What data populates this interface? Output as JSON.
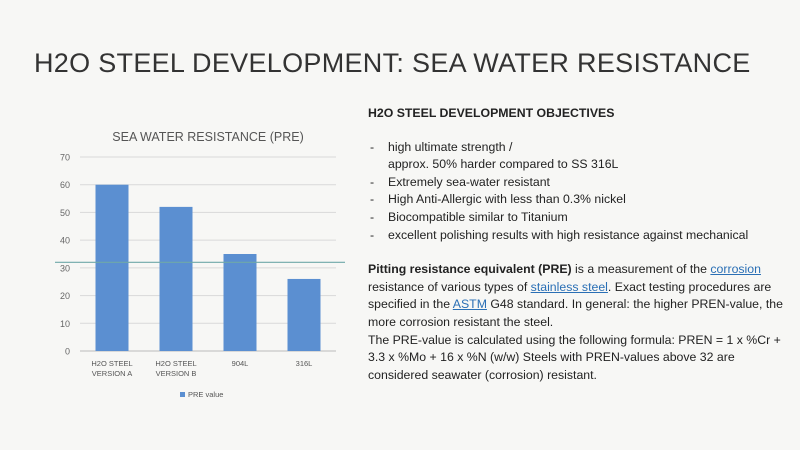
{
  "title": "H2O STEEL DEVELOPMENT: SEA WATER RESISTANCE",
  "objectives": {
    "heading": "H2O STEEL DEVELOPMENT OBJECTIVES",
    "items": [
      {
        "line1": "high ultimate strength /",
        "line2": "approx. 50% harder compared to SS 316L"
      },
      {
        "line1": "Extremely sea-water resistant"
      },
      {
        "line1": "High Anti-Allergic with less than 0.3% nickel"
      },
      {
        "line1": "Biocompatible similar to Titanium"
      },
      {
        "line1": "excellent polishing results with high resistance against mechanical"
      }
    ]
  },
  "description": {
    "term": "Pitting resistance equivalent (PRE)",
    "t1": " is a measurement of the ",
    "link1": "corrosion",
    "t2": " resistance of various types of ",
    "link2": "stainless steel",
    "t3": ". Exact testing procedures are specified in the ",
    "link3": "ASTM",
    "t4": " G48 standard. In general: the higher PREN-value, the more corrosion resistant the steel.",
    "formula": "The PRE-value is calculated using the following formula: PREN = 1 x %Cr + 3.3 x %Mo + 16 x %N (w/w) Steels with PREN-values above 32 are considered seawater (corrosion) resistant."
  },
  "chart_data": {
    "type": "bar",
    "title": "SEA WATER RESISTANCE (PRE)",
    "categories": [
      [
        "H2O STEEL",
        "VERSION A"
      ],
      [
        "H2O STEEL",
        "VERSION B"
      ],
      [
        "904L"
      ],
      [
        "316L"
      ]
    ],
    "series": [
      {
        "name": "PRE value",
        "values": [
          60,
          52,
          35,
          26
        ]
      }
    ],
    "ylim": [
      0,
      70
    ],
    "yticks": [
      0,
      10,
      20,
      30,
      40,
      50,
      60,
      70
    ],
    "grid": true,
    "legend": "bottom",
    "reference_line": 32,
    "colors": {
      "bar": "#5b8fd1",
      "reference": "#6fa8a8",
      "grid": "#d9d9d9"
    }
  }
}
